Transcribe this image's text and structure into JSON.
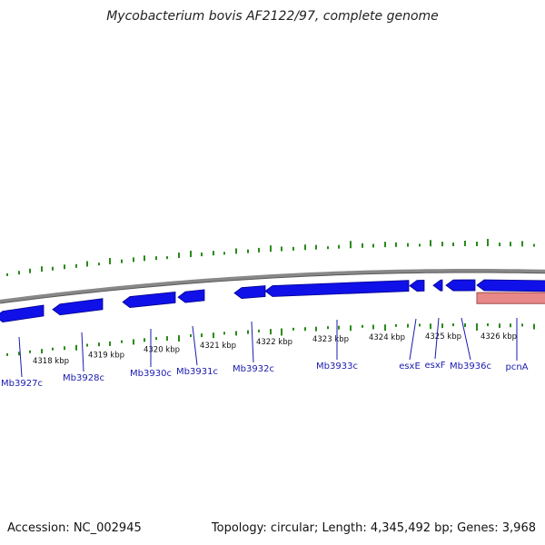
{
  "title": "Mycobacterium bovis AF2122/97, complete genome",
  "footer": {
    "accession": "Accession: NC_002945",
    "summary": "Topology: circular; Length: 4,345,492 bp; Genes: 3,968"
  },
  "colors": {
    "gene": "#1010e8",
    "gene_stroke": "#00008a",
    "backbone": "#888888",
    "gc_tick": "#2a8a1a",
    "highlight": "#e88888",
    "label": "#1a1ab0",
    "scale_text": "#111111"
  },
  "scale_labels": [
    "4318 kbp",
    "4319 kbp",
    "4320 kbp",
    "4321 kbp",
    "4322 kbp",
    "4323 kbp",
    "4324 kbp",
    "4325 kbp",
    "4326 kbp"
  ],
  "genes": [
    {
      "label": "Mb3927c"
    },
    {
      "label": "Mb3928c"
    },
    {
      "label": "Mb3930c"
    },
    {
      "label": "Mb3931c"
    },
    {
      "label": "Mb3932c"
    },
    {
      "label": "Mb3933c"
    },
    {
      "label": "esxE"
    },
    {
      "label": "esxF"
    },
    {
      "label": "Mb3936c"
    },
    {
      "label": "pcnA"
    }
  ]
}
